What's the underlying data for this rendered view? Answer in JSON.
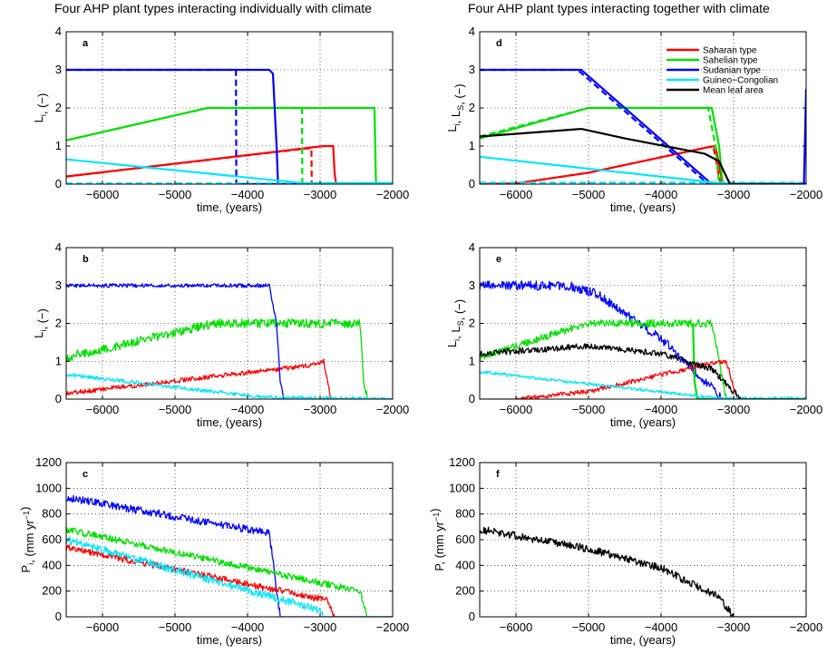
{
  "column_titles": [
    "Four AHP plant types interacting individually with climate",
    "Four AHP plant types interacting together with climate"
  ],
  "legend": {
    "placement": "top-right of panel d",
    "entries": [
      {
        "label": "Saharan type",
        "color": "#ff0000"
      },
      {
        "label": "Sahelian type",
        "color": "#00e000"
      },
      {
        "label": "Sudanian type",
        "color": "#0000ff"
      },
      {
        "label": "Guineo−Congolian",
        "color": "#00e5ff"
      },
      {
        "label": "Mean leaf area",
        "color": "#000000"
      }
    ]
  },
  "chart_data": [
    {
      "id": "a",
      "type": "line",
      "panel_label": "a",
      "xlabel": "time, (years)",
      "ylabel": "L_i, (−)",
      "xlim": [
        -6500,
        -2000
      ],
      "ylim": [
        0,
        4
      ],
      "grid": true,
      "xticks": [
        -6000,
        -5000,
        -4000,
        -3000,
        -2000
      ],
      "yticks": [
        0,
        1,
        2,
        3,
        4
      ],
      "series": [
        {
          "type": "Saharan",
          "style": "solid",
          "x": [
            -6500,
            -2950,
            -2820,
            -2800,
            -2780,
            -2000
          ],
          "y": [
            0.2,
            1.0,
            1.0,
            0.3,
            0.0,
            0.0
          ]
        },
        {
          "type": "Saharan",
          "style": "dashed",
          "x": [
            -6500,
            -3120,
            -3115,
            -2000
          ],
          "y": [
            0.2,
            0.95,
            0.0,
            0.0
          ]
        },
        {
          "type": "Sahelian",
          "style": "solid",
          "x": [
            -6500,
            -4550,
            -2250,
            -2230,
            -2000
          ],
          "y": [
            1.15,
            2.0,
            2.0,
            0.0,
            0.0
          ]
        },
        {
          "type": "Sahelian",
          "style": "dashed",
          "x": [
            -6500,
            -4550,
            -3250,
            -3245,
            -2000
          ],
          "y": [
            1.15,
            2.0,
            2.0,
            0.0,
            0.0
          ]
        },
        {
          "type": "Sudanian",
          "style": "solid",
          "x": [
            -6500,
            -3700,
            -3650,
            -3600,
            -3580,
            -2000
          ],
          "y": [
            3.0,
            3.0,
            2.9,
            1.0,
            0.0,
            0.0
          ]
        },
        {
          "type": "Sudanian",
          "style": "dashed",
          "x": [
            -6500,
            -4160,
            -4155,
            -2000
          ],
          "y": [
            3.0,
            3.0,
            0.0,
            0.0
          ]
        },
        {
          "type": "Guineo-Congolian",
          "style": "solid",
          "x": [
            -6500,
            -3250,
            -2000
          ],
          "y": [
            0.65,
            0.03,
            0.03
          ]
        },
        {
          "type": "Guineo-Congolian",
          "style": "dashed",
          "x": [
            -6500,
            -2000
          ],
          "y": [
            0.02,
            0.02
          ]
        }
      ]
    },
    {
      "id": "b",
      "type": "line",
      "panel_label": "b",
      "xlabel": "time, (years)",
      "ylabel": "L_i, (−)",
      "xlim": [
        -6500,
        -2000
      ],
      "ylim": [
        0,
        4
      ],
      "grid": true,
      "xticks": [
        -6000,
        -5000,
        -4000,
        -3000,
        -2000
      ],
      "yticks": [
        0,
        1,
        2,
        3,
        4
      ],
      "series": [
        {
          "type": "Saharan",
          "style": "solid",
          "noise": 0.06,
          "x": [
            -6500,
            -3100,
            -2950,
            -2900,
            -2850,
            -2000
          ],
          "y": [
            0.15,
            0.9,
            1.0,
            0.5,
            0.0,
            0.0
          ]
        },
        {
          "type": "Sahelian",
          "style": "solid",
          "noise": 0.12,
          "x": [
            -6500,
            -4450,
            -2450,
            -2400,
            -2350,
            -2000
          ],
          "y": [
            1.1,
            2.0,
            2.0,
            0.5,
            0.0,
            0.0
          ]
        },
        {
          "type": "Sudanian",
          "style": "solid",
          "noise": 0.05,
          "x": [
            -6500,
            -3700,
            -3600,
            -3550,
            -3500,
            -2000
          ],
          "y": [
            3.0,
            3.0,
            2.0,
            0.5,
            0.0,
            0.0
          ]
        },
        {
          "type": "Guineo-Congolian",
          "style": "solid",
          "noise": 0.05,
          "x": [
            -6500,
            -3800,
            -2000
          ],
          "y": [
            0.65,
            0.05,
            0.0
          ]
        }
      ]
    },
    {
      "id": "c",
      "type": "line",
      "panel_label": "c",
      "xlabel": "time, (years)",
      "ylabel": "P_i, (mm yr^−1)",
      "xlim": [
        -6500,
        -2000
      ],
      "ylim": [
        0,
        1200
      ],
      "grid": true,
      "xticks": [
        -6000,
        -5000,
        -4000,
        -3000,
        -2000
      ],
      "yticks": [
        0,
        200,
        400,
        600,
        800,
        1000,
        1200
      ],
      "series": [
        {
          "type": "Sudanian",
          "style": "solid",
          "noise": 30,
          "x": [
            -6500,
            -5000,
            -3700,
            -3550,
            -2000
          ],
          "y": [
            930,
            780,
            650,
            0,
            0
          ]
        },
        {
          "type": "Sahelian",
          "style": "solid",
          "noise": 25,
          "x": [
            -6500,
            -2450,
            -2350,
            -2000
          ],
          "y": [
            680,
            200,
            0,
            0
          ]
        },
        {
          "type": "Saharan",
          "style": "solid",
          "noise": 25,
          "x": [
            -6500,
            -2900,
            -2800,
            -2000
          ],
          "y": [
            540,
            130,
            0,
            0
          ]
        },
        {
          "type": "Guineo-Congolian",
          "style": "solid",
          "noise": 30,
          "x": [
            -6500,
            -3000,
            -2950,
            -2000
          ],
          "y": [
            600,
            50,
            0,
            0
          ]
        }
      ]
    },
    {
      "id": "d",
      "type": "line",
      "panel_label": "d",
      "xlabel": "time, (years)",
      "ylabel": "L_i, L_S, (−)",
      "xlim": [
        -6500,
        -2000
      ],
      "ylim": [
        0,
        4
      ],
      "grid": true,
      "xticks": [
        -6000,
        -5000,
        -4000,
        -3000,
        -2000
      ],
      "yticks": [
        0,
        1,
        2,
        3,
        4
      ],
      "series": [
        {
          "type": "Saharan",
          "style": "solid",
          "x": [
            -6500,
            -6000,
            -5000,
            -3400,
            -3250,
            -3150,
            -2000
          ],
          "y": [
            0.0,
            0.02,
            0.3,
            0.95,
            1.0,
            0.0,
            0.0
          ]
        },
        {
          "type": "Saharan",
          "style": "dashed",
          "x": [
            -6500,
            -6000,
            -5000,
            -3400,
            -3280,
            -3180,
            -2000
          ],
          "y": [
            0.0,
            0.02,
            0.3,
            0.95,
            1.0,
            0.0,
            0.0
          ]
        },
        {
          "type": "Sahelian",
          "style": "solid",
          "x": [
            -6500,
            -5000,
            -3300,
            -3200,
            -3150,
            -2000
          ],
          "y": [
            1.2,
            2.0,
            2.0,
            1.0,
            0.0,
            0.0
          ]
        },
        {
          "type": "Sahelian",
          "style": "dashed",
          "x": [
            -6500,
            -5000,
            -3350,
            -3250,
            -3200,
            -2000
          ],
          "y": [
            1.25,
            2.0,
            2.0,
            1.0,
            0.0,
            0.0
          ]
        },
        {
          "type": "Sudanian",
          "style": "solid",
          "x": [
            -6500,
            -5100,
            -3300,
            -3150,
            -2000
          ],
          "y": [
            3.0,
            3.0,
            0.0,
            0.0,
            0.0
          ]
        },
        {
          "type": "Sudanian",
          "style": "dashed",
          "x": [
            -6500,
            -5150,
            -3350,
            -3200,
            -2000
          ],
          "y": [
            3.0,
            3.0,
            0.0,
            0.0,
            0.0
          ]
        },
        {
          "type": "Guineo-Congolian",
          "style": "solid",
          "x": [
            -6500,
            -3150,
            -2000
          ],
          "y": [
            0.72,
            0.02,
            0.02
          ]
        },
        {
          "type": "Guineo-Congolian",
          "style": "dashed",
          "x": [
            -6500,
            -2000
          ],
          "y": [
            0.04,
            0.04
          ]
        },
        {
          "type": "Mean leaf area",
          "style": "solid",
          "x": [
            -6500,
            -5100,
            -4500,
            -3400,
            -3200,
            -3050,
            -2000
          ],
          "y": [
            1.25,
            1.45,
            1.2,
            0.8,
            0.6,
            0.0,
            0.0
          ]
        },
        {
          "type": "Sudanian",
          "style": "solid",
          "x": [
            -2030,
            -2000
          ],
          "y": [
            0.0,
            2.5
          ]
        }
      ]
    },
    {
      "id": "e",
      "type": "line",
      "panel_label": "e",
      "xlabel": "time, (years)",
      "ylabel": "L_i, L_S, (−)",
      "xlim": [
        -6500,
        -2000
      ],
      "ylim": [
        0,
        4
      ],
      "grid": true,
      "xticks": [
        -6000,
        -5000,
        -4000,
        -3000,
        -2000
      ],
      "yticks": [
        0,
        1,
        2,
        3,
        4
      ],
      "series": [
        {
          "type": "Sudanian",
          "style": "solid",
          "noise": 0.12,
          "x": [
            -6500,
            -5300,
            -4900,
            -4000,
            -3300,
            -3150,
            -2000
          ],
          "y": [
            3.0,
            3.0,
            2.8,
            1.6,
            0.3,
            0.0,
            0.0
          ]
        },
        {
          "type": "Sahelian",
          "style": "solid",
          "noise": 0.1,
          "x": [
            -6500,
            -5000,
            -3300,
            -3200,
            -3100,
            -2000
          ],
          "y": [
            1.1,
            2.0,
            2.0,
            1.0,
            0.0,
            0.0
          ]
        },
        {
          "type": "Sahelian",
          "style": "solid",
          "noise": 0.0,
          "x": [
            -3560,
            -3540,
            -3500,
            -2000
          ],
          "y": [
            2.0,
            0.5,
            0.0,
            0.0
          ]
        },
        {
          "type": "Saharan",
          "style": "solid",
          "noise": 0.06,
          "x": [
            -6500,
            -6000,
            -5000,
            -3300,
            -3100,
            -2950,
            -2000
          ],
          "y": [
            0.0,
            0.0,
            0.2,
            0.95,
            1.0,
            0.0,
            0.0
          ]
        },
        {
          "type": "Guineo-Congolian",
          "style": "solid",
          "noise": 0.04,
          "x": [
            -6500,
            -3200,
            -2000
          ],
          "y": [
            0.72,
            0.02,
            0.02
          ]
        },
        {
          "type": "Mean leaf area",
          "style": "solid",
          "noise": 0.08,
          "x": [
            -6500,
            -5000,
            -4000,
            -3300,
            -3050,
            -2900,
            -2000
          ],
          "y": [
            1.2,
            1.4,
            1.2,
            0.8,
            0.3,
            0.0,
            0.0
          ]
        }
      ]
    },
    {
      "id": "f",
      "type": "line",
      "panel_label": "f",
      "xlabel": "time, (years)",
      "ylabel": "P, (mm yr^−1)",
      "xlim": [
        -6500,
        -2000
      ],
      "ylim": [
        0,
        1200
      ],
      "grid": true,
      "xticks": [
        -6000,
        -5000,
        -4000,
        -3000,
        -2000
      ],
      "yticks": [
        0,
        200,
        400,
        600,
        800,
        1000,
        1200
      ],
      "series": [
        {
          "type": "Mean leaf area",
          "style": "solid",
          "noise": 30,
          "x": [
            -6500,
            -5000,
            -4000,
            -3200,
            -3000,
            -2000
          ],
          "y": [
            680,
            530,
            380,
            150,
            0,
            0
          ]
        }
      ]
    }
  ]
}
